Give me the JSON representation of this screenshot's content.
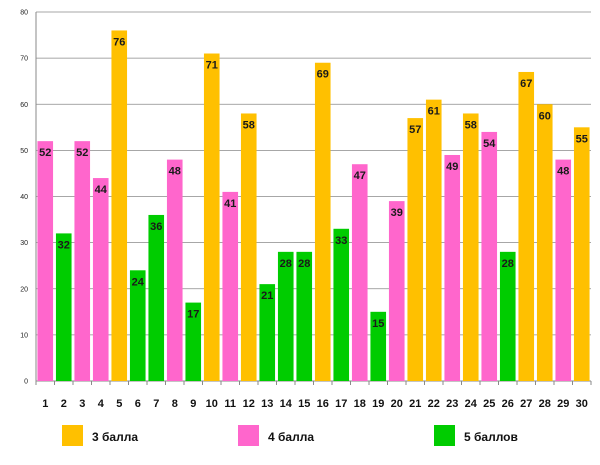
{
  "chart_data": {
    "type": "bar",
    "title": "",
    "xlabel": "",
    "ylabel": "",
    "ylim": [
      0,
      80
    ],
    "yticks": [
      0,
      10,
      20,
      30,
      40,
      50,
      60,
      70,
      80
    ],
    "grid": true,
    "categories": [
      "1",
      "2",
      "3",
      "4",
      "5",
      "6",
      "7",
      "8",
      "9",
      "10",
      "11",
      "12",
      "13",
      "14",
      "15",
      "16",
      "17",
      "18",
      "19",
      "20",
      "21",
      "22",
      "23",
      "24",
      "25",
      "26",
      "27",
      "28",
      "29",
      "30"
    ],
    "values": [
      52,
      32,
      52,
      44,
      76,
      24,
      36,
      48,
      17,
      71,
      41,
      58,
      21,
      28,
      28,
      69,
      33,
      47,
      15,
      39,
      57,
      61,
      49,
      58,
      54,
      28,
      67,
      60,
      48,
      55
    ],
    "groups": [
      1,
      2,
      1,
      1,
      0,
      2,
      2,
      1,
      2,
      0,
      1,
      0,
      2,
      2,
      2,
      0,
      2,
      1,
      2,
      1,
      0,
      0,
      1,
      0,
      1,
      2,
      0,
      0,
      1,
      0
    ],
    "legend": [
      {
        "label": "3 балла",
        "color": "#FFC000"
      },
      {
        "label": "4 балла",
        "color": "#FF66CC"
      },
      {
        "label": "5 баллов",
        "color": "#00CC00"
      }
    ],
    "legend_position": "bottom"
  }
}
